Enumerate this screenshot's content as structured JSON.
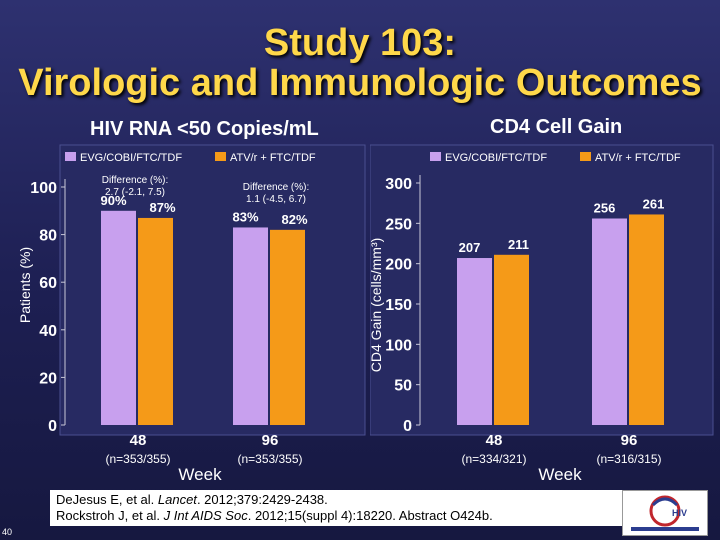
{
  "slide": {
    "title_line1": "Study 103:",
    "title_line2": "Virologic and Immunologic Outcomes",
    "slide_number": "40",
    "citation_line1_pre": "DeJesus E, et al. ",
    "citation_line1_journal": "Lancet",
    "citation_line1_post": ". 2012;379:2429-2438.",
    "citation_line2_pre": "Rockstroh J, et al. ",
    "citation_line2_journal": "J Int AIDS Soc",
    "citation_line2_post": ". 2012;15(suppl 4):18220. Abstract O424b.",
    "logo_text": "HIV"
  },
  "colors": {
    "series1": "#c8a0ee",
    "series2": "#f59a18",
    "label": "#ffffff",
    "title": "#ffd84a"
  },
  "chart_data": [
    {
      "type": "bar",
      "title": "HIV RNA <50 Copies/mL",
      "xlabel": "Week",
      "ylabel": "Patients (%)",
      "ylim": [
        0,
        100
      ],
      "yticks": [
        0,
        20,
        40,
        60,
        80,
        100
      ],
      "grid": false,
      "legend": "top",
      "categories": [
        "48",
        "96"
      ],
      "category_sublabels": [
        "(n=353/355)",
        "(n=353/355)"
      ],
      "series": [
        {
          "name": "EVG/COBI/FTC/TDF",
          "values": [
            90,
            83
          ],
          "labels": [
            "90%",
            "83%"
          ]
        },
        {
          "name": "ATV/r + FTC/TDF",
          "values": [
            87,
            82
          ],
          "labels": [
            "87%",
            "82%"
          ]
        }
      ],
      "annotations": [
        {
          "category": "48",
          "line1": "Difference (%):",
          "line2": "2.7 (-2.1, 7.5)"
        },
        {
          "category": "96",
          "line1": "Difference (%):",
          "line2": "1.1 (-4.5, 6.7)"
        }
      ]
    },
    {
      "type": "bar",
      "title": "CD4 Cell Gain",
      "xlabel": "Week",
      "ylabel": "CD4 Gain (cells/mm³)",
      "ylim": [
        0,
        300
      ],
      "yticks": [
        0,
        50,
        100,
        150,
        200,
        250,
        300
      ],
      "grid": false,
      "legend": "top",
      "categories": [
        "48",
        "96"
      ],
      "category_sublabels": [
        "(n=334/321)",
        "(n=316/315)"
      ],
      "series": [
        {
          "name": "EVG/COBI/FTC/TDF",
          "values": [
            207,
            256
          ],
          "labels": [
            "207",
            "256"
          ]
        },
        {
          "name": "ATV/r + FTC/TDF",
          "values": [
            211,
            261
          ],
          "labels": [
            "211",
            "261"
          ]
        }
      ]
    }
  ]
}
